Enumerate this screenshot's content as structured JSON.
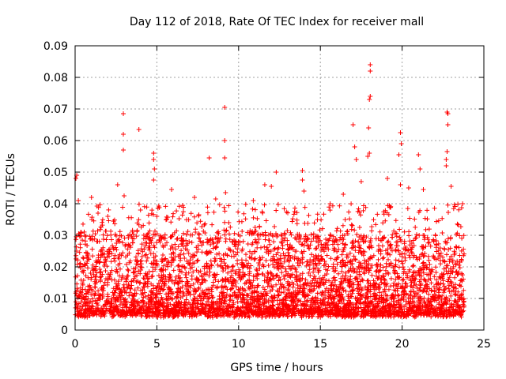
{
  "chart_data": {
    "type": "scatter",
    "title": "Day 112 of 2018, Rate Of TEC Index for receiver mall",
    "xlabel": "GPS time / hours",
    "ylabel": "ROTI / TECUs",
    "xlim": [
      0,
      25
    ],
    "ylim": [
      0,
      0.09
    ],
    "x_ticks": [
      0,
      5,
      10,
      15,
      20,
      25
    ],
    "x_tick_labels": [
      "0",
      "5",
      "10",
      "15",
      "20",
      "25"
    ],
    "y_ticks": [
      0,
      0.01,
      0.02,
      0.03,
      0.04,
      0.05,
      0.06,
      0.07,
      0.08,
      0.09
    ],
    "y_tick_labels": [
      "0",
      "0.01",
      "0.02",
      "0.03",
      "0.04",
      "0.05",
      "0.06",
      "0.07",
      "0.08",
      "0.09"
    ],
    "grid": true,
    "marker": "+",
    "series_color": "#ff0000",
    "series": [
      {
        "name": "ROTI",
        "baseline_band": [
          0.004,
          0.03
        ],
        "peaks": [
          {
            "x": 0.05,
            "y": 0.048
          },
          {
            "x": 0.1,
            "y": 0.049
          },
          {
            "x": 0.2,
            "y": 0.041
          },
          {
            "x": 1.0,
            "y": 0.042
          },
          {
            "x": 1.4,
            "y": 0.037
          },
          {
            "x": 2.0,
            "y": 0.036
          },
          {
            "x": 2.6,
            "y": 0.046
          },
          {
            "x": 2.95,
            "y": 0.0685
          },
          {
            "x": 2.95,
            "y": 0.062
          },
          {
            "x": 2.95,
            "y": 0.057
          },
          {
            "x": 3.0,
            "y": 0.0425
          },
          {
            "x": 3.9,
            "y": 0.0635
          },
          {
            "x": 4.0,
            "y": 0.038
          },
          {
            "x": 4.8,
            "y": 0.056
          },
          {
            "x": 4.8,
            "y": 0.054
          },
          {
            "x": 4.85,
            "y": 0.051
          },
          {
            "x": 4.8,
            "y": 0.0475
          },
          {
            "x": 5.0,
            "y": 0.036
          },
          {
            "x": 5.9,
            "y": 0.0445
          },
          {
            "x": 7.3,
            "y": 0.042
          },
          {
            "x": 8.2,
            "y": 0.0545
          },
          {
            "x": 8.6,
            "y": 0.0415
          },
          {
            "x": 9.15,
            "y": 0.0705
          },
          {
            "x": 9.15,
            "y": 0.06
          },
          {
            "x": 9.15,
            "y": 0.0545
          },
          {
            "x": 9.2,
            "y": 0.0435
          },
          {
            "x": 10.9,
            "y": 0.041
          },
          {
            "x": 11.6,
            "y": 0.046
          },
          {
            "x": 12.0,
            "y": 0.0455
          },
          {
            "x": 12.3,
            "y": 0.05
          },
          {
            "x": 13.9,
            "y": 0.0505
          },
          {
            "x": 13.9,
            "y": 0.0475
          },
          {
            "x": 14.0,
            "y": 0.044
          },
          {
            "x": 15.6,
            "y": 0.04
          },
          {
            "x": 16.4,
            "y": 0.043
          },
          {
            "x": 17.0,
            "y": 0.065
          },
          {
            "x": 17.1,
            "y": 0.058
          },
          {
            "x": 17.2,
            "y": 0.054
          },
          {
            "x": 17.5,
            "y": 0.047
          },
          {
            "x": 17.9,
            "y": 0.055
          },
          {
            "x": 18.05,
            "y": 0.084
          },
          {
            "x": 18.05,
            "y": 0.082
          },
          {
            "x": 18.05,
            "y": 0.074
          },
          {
            "x": 18.0,
            "y": 0.073
          },
          {
            "x": 17.95,
            "y": 0.064
          },
          {
            "x": 18.0,
            "y": 0.056
          },
          {
            "x": 19.1,
            "y": 0.048
          },
          {
            "x": 19.9,
            "y": 0.0625
          },
          {
            "x": 19.95,
            "y": 0.059
          },
          {
            "x": 19.8,
            "y": 0.0555
          },
          {
            "x": 19.9,
            "y": 0.046
          },
          {
            "x": 20.4,
            "y": 0.045
          },
          {
            "x": 21.0,
            "y": 0.0555
          },
          {
            "x": 21.1,
            "y": 0.051
          },
          {
            "x": 21.3,
            "y": 0.0445
          },
          {
            "x": 22.75,
            "y": 0.069
          },
          {
            "x": 22.8,
            "y": 0.0685
          },
          {
            "x": 22.8,
            "y": 0.065
          },
          {
            "x": 22.75,
            "y": 0.0565
          },
          {
            "x": 22.7,
            "y": 0.054
          },
          {
            "x": 22.7,
            "y": 0.052
          },
          {
            "x": 23.0,
            "y": 0.0455
          },
          {
            "x": 23.7,
            "y": 0.04
          }
        ]
      }
    ]
  }
}
